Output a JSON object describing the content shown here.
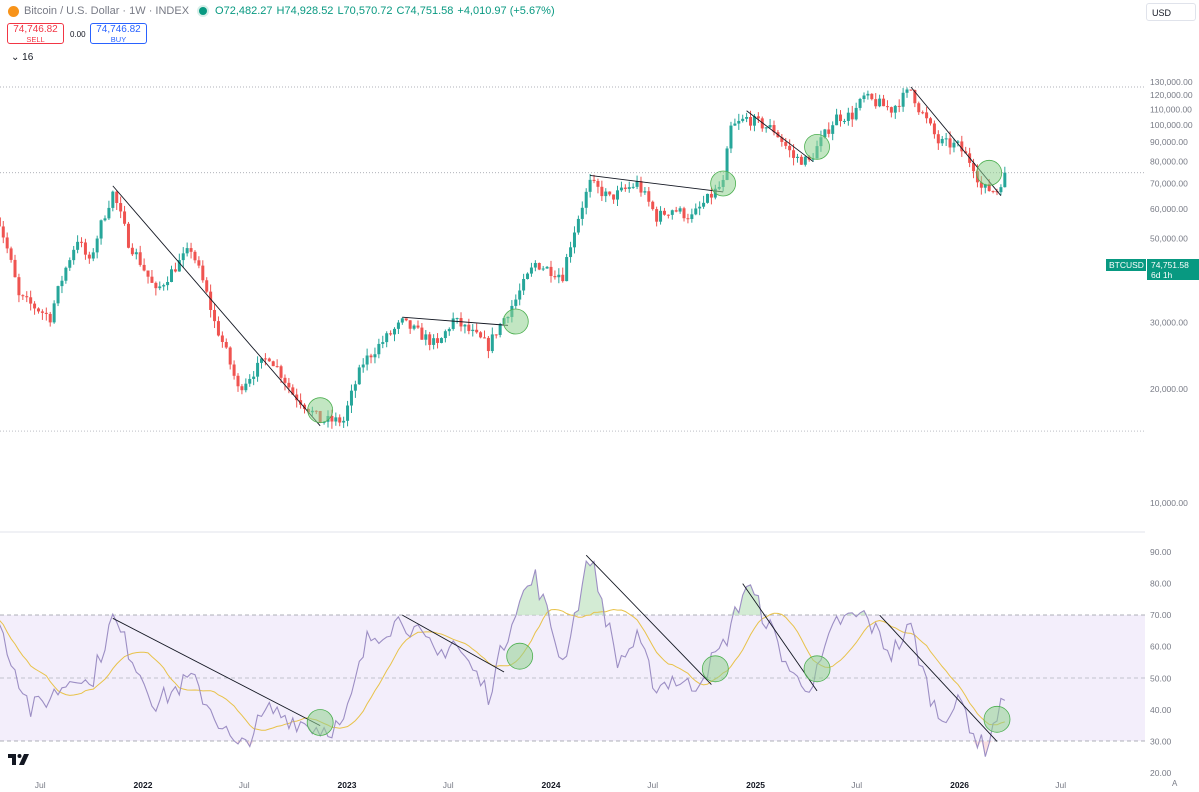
{
  "header": {
    "symbol_title": "Bitcoin / U.S. Dollar · 1W · INDEX",
    "open": "O72,482.27",
    "high": "H74,928.52",
    "low": "L70,570.72",
    "close": "C74,751.58",
    "change": "+4,010.97 (+5.67%)",
    "sell_price": "74,746.82",
    "sell_label": "SELL",
    "spread": "0.00",
    "buy_price": "74,746.82",
    "buy_label": "BUY",
    "indicator_count": "16",
    "currency": "USD"
  },
  "price_tag": {
    "symbol": "BTCUSD",
    "price": "74,751.58",
    "countdown": "6d 1h"
  },
  "axis_a_label": "A",
  "colors": {
    "up": "#26a69a",
    "down": "#ef5350",
    "rsi": "#9c8ec4",
    "rsi_ma": "#e8c24a",
    "band": "#f3eefb",
    "highlight": "#8fd18f"
  },
  "chart_data": [
    {
      "type": "candlestick",
      "interval": "1W",
      "x_tick_labels": [
        "Jul",
        "2022",
        "Jul",
        "2023",
        "Jul",
        "2024",
        "Jul",
        "2025",
        "Jul",
        "2026",
        "Jul"
      ],
      "y_tick_labels": [
        "10,000.00",
        "20,000.00",
        "30,000.00",
        "40,000.00",
        "50,000.00",
        "60,000.00",
        "70,000.00",
        "80,000.00",
        "90,000.00",
        "100,000.00",
        "110,000.00",
        "120,000.00",
        "130,000.00"
      ],
      "ylim": [
        10000,
        130000
      ],
      "y_scale": "log",
      "last_price": 74751.58,
      "horizontal_levels": [
        126000,
        74751.58,
        15500
      ],
      "trendlines": [
        {
          "from": [
            "2021-11-08",
            69000
          ],
          "to": [
            "2022-11-14",
            16000
          ]
        },
        {
          "from": [
            "2023-04-10",
            31000
          ],
          "to": [
            "2023-10-16",
            29500
          ]
        },
        {
          "from": [
            "2024-03-11",
            73500
          ],
          "to": [
            "2024-11-04",
            66500
          ]
        },
        {
          "from": [
            "2024-12-16",
            109000
          ],
          "to": [
            "2025-04-14",
            80000
          ]
        },
        {
          "from": [
            "2025-10-06",
            126000
          ],
          "to": [
            "2026-03-16",
            65000
          ]
        }
      ],
      "highlight_markers": [
        {
          "date": "2022-11-14",
          "price": 17600
        },
        {
          "date": "2023-10-30",
          "price": 30200
        },
        {
          "date": "2024-11-04",
          "price": 70000
        },
        {
          "date": "2025-04-21",
          "price": 87500
        },
        {
          "date": "2026-02-23",
          "price": 74700
        }
      ],
      "waypoints": [
        [
          "2021-04-12",
          59000
        ],
        [
          "2021-05-24",
          35000
        ],
        [
          "2021-07-19",
          31000
        ],
        [
          "2021-09-06",
          50000
        ],
        [
          "2021-09-27",
          43000
        ],
        [
          "2021-11-08",
          66000
        ],
        [
          "2021-12-06",
          49000
        ],
        [
          "2022-01-24",
          36000
        ],
        [
          "2022-03-28",
          47000
        ],
        [
          "2022-05-09",
          30000
        ],
        [
          "2022-06-20",
          20000
        ],
        [
          "2022-08-15",
          24500
        ],
        [
          "2022-09-26",
          19500
        ],
        [
          "2022-11-14",
          16500
        ],
        [
          "2022-12-26",
          16500
        ],
        [
          "2023-01-30",
          23500
        ],
        [
          "2023-04-10",
          30000
        ],
        [
          "2023-06-12",
          26000
        ],
        [
          "2023-07-10",
          30500
        ],
        [
          "2023-09-11",
          26000
        ],
        [
          "2023-10-30",
          34500
        ],
        [
          "2023-12-04",
          43000
        ],
        [
          "2024-01-22",
          40000
        ],
        [
          "2024-03-11",
          70000
        ],
        [
          "2024-04-15",
          64000
        ],
        [
          "2024-06-03",
          70000
        ],
        [
          "2024-07-08",
          57000
        ],
        [
          "2024-08-05",
          60000
        ],
        [
          "2024-09-09",
          57000
        ],
        [
          "2024-11-04",
          70000
        ],
        [
          "2024-11-18",
          98000
        ],
        [
          "2024-12-16",
          104000
        ],
        [
          "2025-02-03",
          97000
        ],
        [
          "2025-03-10",
          82000
        ],
        [
          "2025-04-07",
          80000
        ],
        [
          "2025-05-26",
          105000
        ],
        [
          "2025-06-23",
          106000
        ],
        [
          "2025-07-14",
          118000
        ],
        [
          "2025-09-01",
          110000
        ],
        [
          "2025-10-06",
          124000
        ],
        [
          "2025-10-20",
          111000
        ],
        [
          "2025-11-24",
          90000
        ],
        [
          "2025-12-29",
          88000
        ],
        [
          "2026-01-26",
          78000
        ],
        [
          "2026-02-09",
          68000
        ],
        [
          "2026-03-09",
          67000
        ],
        [
          "2026-03-23",
          74751.58
        ]
      ]
    },
    {
      "type": "line",
      "name": "RSI",
      "y_tick_labels": [
        "20.00",
        "30.00",
        "40.00",
        "50.00",
        "60.00",
        "70.00",
        "80.00",
        "90.00"
      ],
      "ylim": [
        20,
        90
      ],
      "band": [
        30,
        70
      ],
      "midline": 50,
      "trendlines": [
        {
          "from": [
            "2021-11-08",
            69
          ],
          "to": [
            "2022-11-14",
            35
          ]
        },
        {
          "from": [
            "2023-04-10",
            70
          ],
          "to": [
            "2023-10-09",
            52
          ]
        },
        {
          "from": [
            "2024-03-04",
            89
          ],
          "to": [
            "2024-10-14",
            48
          ]
        },
        {
          "from": [
            "2024-12-09",
            80
          ],
          "to": [
            "2025-04-21",
            46
          ]
        },
        {
          "from": [
            "2025-08-11",
            70
          ],
          "to": [
            "2026-03-09",
            30
          ]
        }
      ],
      "highlight_markers": [
        {
          "date": "2022-11-14",
          "value": 36
        },
        {
          "date": "2023-11-06",
          "value": 57
        },
        {
          "date": "2024-10-21",
          "value": 53
        },
        {
          "date": "2025-04-21",
          "value": 53
        },
        {
          "date": "2026-03-09",
          "value": 37
        }
      ],
      "rsi_waypoints": [
        [
          "2021-04-12",
          70
        ],
        [
          "2021-06-14",
          40
        ],
        [
          "2021-07-19",
          44
        ],
        [
          "2021-09-06",
          52
        ],
        [
          "2021-09-27",
          47
        ],
        [
          "2021-11-08",
          69
        ],
        [
          "2022-01-24",
          42
        ],
        [
          "2022-03-28",
          50
        ],
        [
          "2022-06-20",
          27
        ],
        [
          "2022-08-15",
          40
        ],
        [
          "2022-09-26",
          37
        ],
        [
          "2022-11-14",
          34
        ],
        [
          "2022-12-26",
          35
        ],
        [
          "2023-02-06",
          62
        ],
        [
          "2023-04-10",
          69
        ],
        [
          "2023-06-12",
          57
        ],
        [
          "2023-07-10",
          62
        ],
        [
          "2023-09-11",
          45
        ],
        [
          "2023-10-30",
          73
        ],
        [
          "2023-12-04",
          82
        ],
        [
          "2024-01-22",
          55
        ],
        [
          "2024-03-11",
          89
        ],
        [
          "2024-04-29",
          55
        ],
        [
          "2024-06-03",
          62
        ],
        [
          "2024-07-08",
          47
        ],
        [
          "2024-08-05",
          50
        ],
        [
          "2024-09-09",
          47
        ],
        [
          "2024-11-04",
          60
        ],
        [
          "2024-12-16",
          80
        ],
        [
          "2025-01-27",
          66
        ],
        [
          "2025-03-10",
          50
        ],
        [
          "2025-04-14",
          48
        ],
        [
          "2025-05-26",
          68
        ],
        [
          "2025-07-14",
          70
        ],
        [
          "2025-09-01",
          58
        ],
        [
          "2025-10-06",
          66
        ],
        [
          "2025-11-03",
          48
        ],
        [
          "2025-11-24",
          38
        ],
        [
          "2026-01-05",
          42
        ],
        [
          "2026-02-02",
          30
        ],
        [
          "2026-02-16",
          28
        ],
        [
          "2026-03-09",
          38
        ],
        [
          "2026-03-23",
          43
        ]
      ]
    }
  ]
}
